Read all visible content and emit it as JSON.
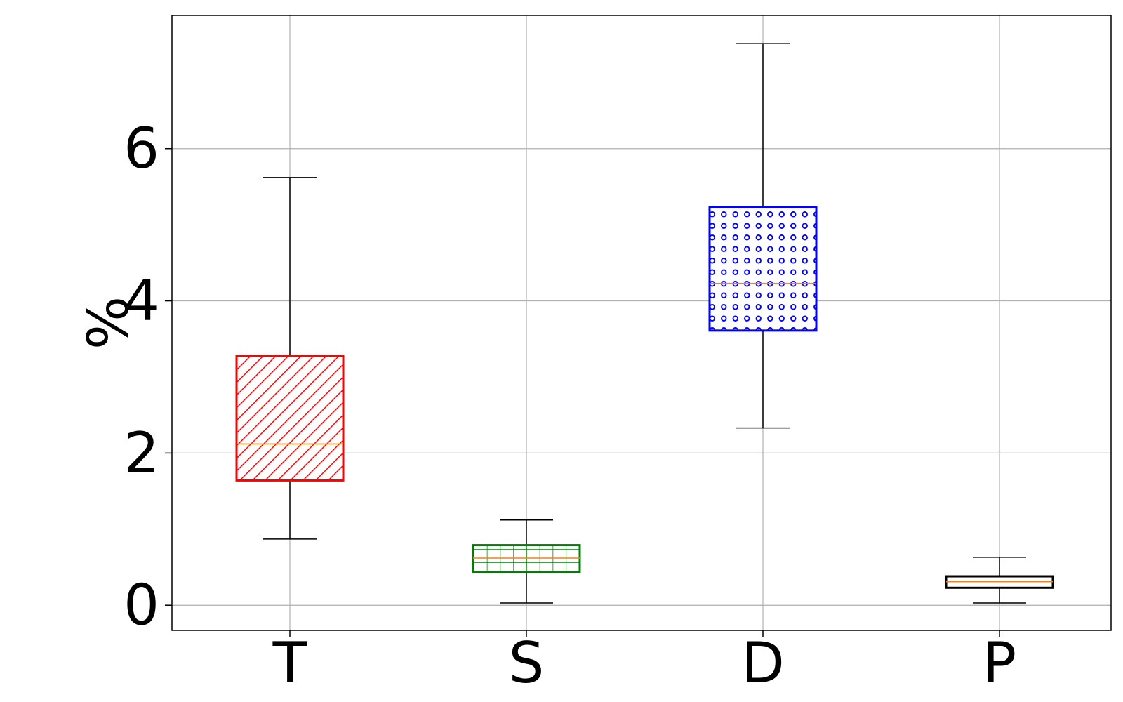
{
  "chart_data": {
    "type": "box",
    "title": "",
    "xlabel": "",
    "ylabel": "%",
    "ylim": [
      -0.33,
      7.75
    ],
    "yticks": [
      0,
      2,
      4,
      6
    ],
    "ytick_labels": [
      "0",
      "2",
      "4",
      "6"
    ],
    "grid": true,
    "categories": [
      "T",
      "S",
      "D",
      "P"
    ],
    "boxes": [
      {
        "label": "T",
        "whisker_low": 0.87,
        "q1": 1.64,
        "median": 2.12,
        "q3": 3.28,
        "whisker_high": 5.62,
        "edge_color": "#ff0000",
        "hatch": "diagonal"
      },
      {
        "label": "S",
        "whisker_low": 0.03,
        "q1": 0.44,
        "median": 0.62,
        "q3": 0.79,
        "whisker_high": 1.12,
        "edge_color": "#008000",
        "hatch": "grid"
      },
      {
        "label": "D",
        "whisker_low": 2.33,
        "q1": 3.61,
        "median": 4.23,
        "q3": 5.23,
        "whisker_high": 7.38,
        "edge_color": "#0000ff",
        "hatch": "circles"
      },
      {
        "label": "P",
        "whisker_low": 0.03,
        "q1": 0.23,
        "median": 0.31,
        "q3": 0.38,
        "whisker_high": 0.63,
        "edge_color": "#000000",
        "hatch": "none"
      }
    ],
    "median_color": "#ff7f0e"
  }
}
